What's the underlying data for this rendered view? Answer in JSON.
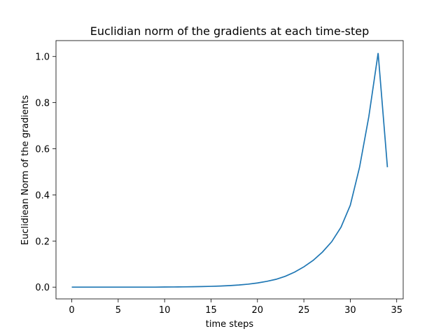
{
  "chart_data": {
    "type": "line",
    "title": "Euclidian norm of the gradients at each time-step",
    "xlabel": "time steps",
    "ylabel": "Euclidiean Norm of the gradients",
    "xlim": [
      -1.7,
      35.7
    ],
    "ylim": [
      -0.051,
      1.069
    ],
    "xticks": [
      0,
      5,
      10,
      15,
      20,
      25,
      30,
      35
    ],
    "xtick_labels": [
      "0",
      "5",
      "10",
      "15",
      "20",
      "25",
      "30",
      "35"
    ],
    "yticks": [
      0.0,
      0.2,
      0.4,
      0.6,
      0.8,
      1.0
    ],
    "ytick_labels": [
      "0.0",
      "0.2",
      "0.4",
      "0.6",
      "0.8",
      "1.0"
    ],
    "grid": false,
    "line_color": "#1f77b4",
    "series": [
      {
        "x": [
          0,
          1,
          2,
          3,
          4,
          5,
          6,
          7,
          8,
          9,
          10,
          11,
          12,
          13,
          14,
          15,
          16,
          17,
          18,
          19,
          20,
          21,
          22,
          23,
          24,
          25,
          26,
          27,
          28,
          29,
          30,
          31,
          32,
          33,
          34
        ],
        "y": [
          0.0,
          0.0,
          0.0,
          0.0,
          0.0,
          0.0,
          0.0,
          0.0,
          0.0,
          0.0,
          0.0005,
          0.0008,
          0.0012,
          0.0017,
          0.0024,
          0.0034,
          0.0048,
          0.0067,
          0.0093,
          0.013,
          0.018,
          0.025,
          0.034,
          0.047,
          0.065,
          0.088,
          0.116,
          0.152,
          0.197,
          0.26,
          0.355,
          0.52,
          0.74,
          1.015,
          0.52
        ]
      }
    ]
  }
}
